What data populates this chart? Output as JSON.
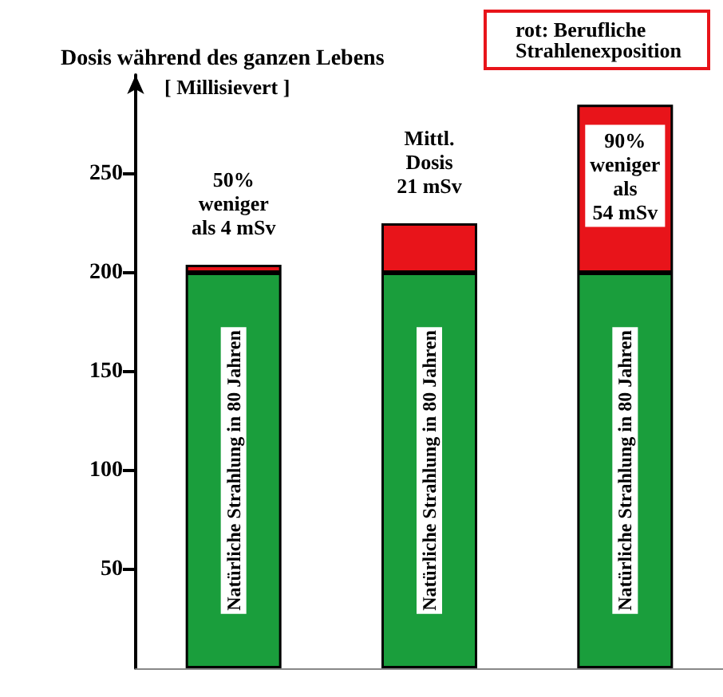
{
  "chart_data": {
    "type": "bar",
    "title": "Dosis während des ganzen Lebens",
    "ylabel": "[ Millisievert ]",
    "annotations": [
      "rot: Berufliche\nStrahlenexposition",
      "50%\nweniger\nals 4 mSv",
      "Mittl.\nDosis\n21 mSv",
      "90%\nweniger\nals\n54 mSv"
    ],
    "categories": [
      null,
      null,
      null
    ],
    "stacked": true,
    "series": [
      {
        "name": "Natürliche Strahlung in 80 Jahren",
        "color": "#1a9e3c",
        "values": [
          200,
          200,
          200
        ]
      },
      {
        "color": "#e8141a",
        "values": [
          4,
          25,
          85
        ]
      }
    ],
    "ylim": [
      0,
      300
    ],
    "yticks": [
      50,
      100,
      150,
      200,
      250
    ],
    "grid": false
  }
}
